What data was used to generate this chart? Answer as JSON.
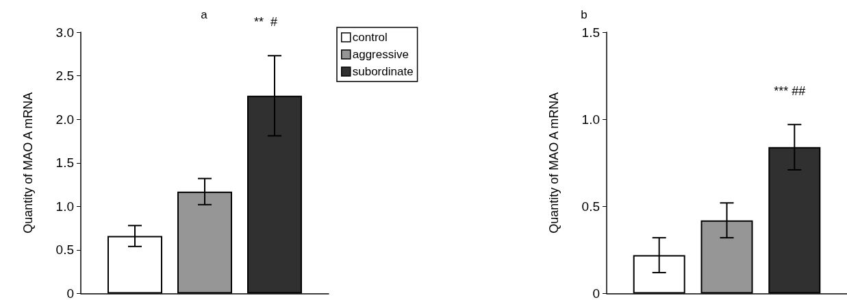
{
  "chart_data": [
    {
      "type": "bar",
      "title": "a",
      "ylabel": "Quantity of MAO A mRNA",
      "categories": [
        null
      ],
      "series": [
        {
          "name": "control",
          "color": "#ffffff",
          "values": [
            0.66
          ],
          "errors": [
            0.12
          ]
        },
        {
          "name": "aggressive",
          "color": "#969696",
          "values": [
            1.17
          ],
          "errors": [
            0.15
          ]
        },
        {
          "name": "subordinate",
          "color": "#303030",
          "values": [
            2.27
          ],
          "errors": [
            0.46
          ]
        }
      ],
      "ylim": [
        0,
        3
      ],
      "yticks": [
        0,
        0.5,
        {
          "value": 1,
          "label": "1.0"
        },
        1.5,
        {
          "value": 2,
          "label": "2.0"
        },
        2.5,
        {
          "value": 3,
          "label": "3.0"
        }
      ],
      "annotations": [
        "**  #"
      ],
      "legend": "top right",
      "grid": false
    },
    {
      "type": "bar",
      "title": "b",
      "ylabel": "Quantity of MAO A mRNA",
      "categories": [
        null
      ],
      "series": [
        {
          "color": "#ffffff",
          "values": [
            0.22
          ],
          "errors": [
            0.1
          ]
        },
        {
          "color": "#969696",
          "values": [
            0.42
          ],
          "errors": [
            0.1
          ]
        },
        {
          "color": "#303030",
          "values": [
            0.84
          ],
          "errors": [
            0.13
          ]
        }
      ],
      "ylim": [
        0,
        1.5
      ],
      "yticks": [
        0,
        0.5,
        {
          "value": 1,
          "label": "1.0"
        },
        1.5
      ],
      "annotations": [
        "*** ##"
      ],
      "grid": false
    }
  ]
}
